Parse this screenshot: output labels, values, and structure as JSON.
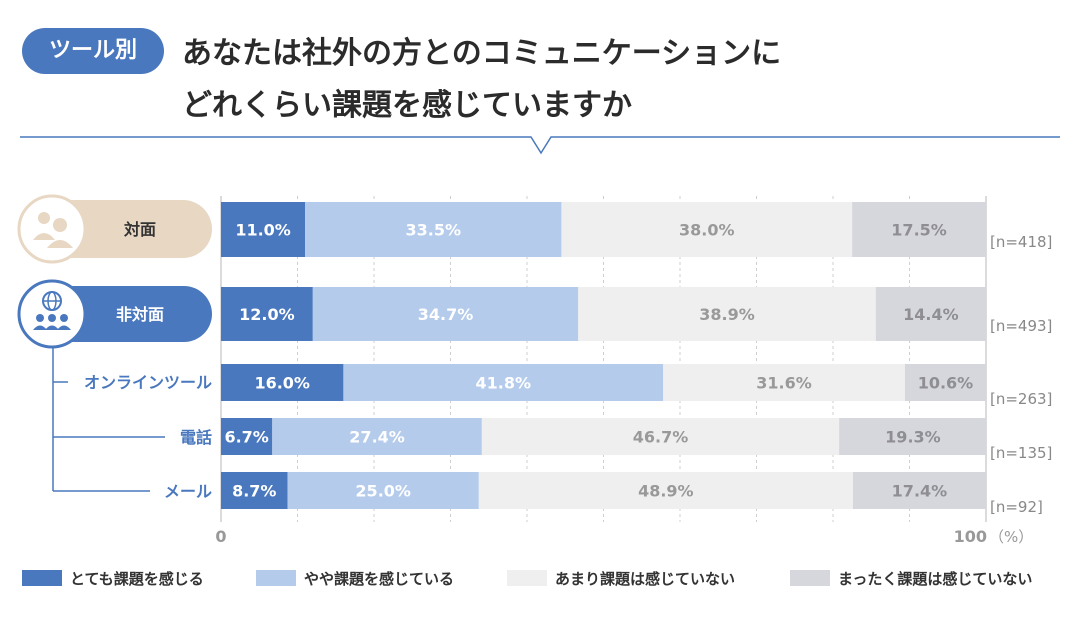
{
  "badge": "ツール別",
  "title_lines": [
    "あなたは社外の方とのコミュニケーションに",
    "どれくらい課題を感じていますか"
  ],
  "colors": {
    "accent": "#4a78be",
    "seg1": "#4a78be",
    "seg2": "#b4cbeb",
    "seg3": "#efefef",
    "seg4": "#d6d7dc",
    "face_pill": "#e7d7c3",
    "grid": "#cfcfcf",
    "nlabel": "#888888"
  },
  "chart_data": {
    "type": "bar",
    "orientation": "horizontal",
    "stacked": true,
    "categories": [
      "対面",
      "非対面",
      "オンラインツール",
      "電話",
      "メール"
    ],
    "sample_sizes": [
      "[n=418]",
      "[n=493]",
      "[n=263]",
      "[n=135]",
      "[n=92]"
    ],
    "series": [
      {
        "name": "とても課題を感じる",
        "values": [
          11.0,
          12.0,
          16.0,
          6.7,
          8.7
        ],
        "labels": [
          "11.0%",
          "12.0%",
          "16.0%",
          "6.7%",
          "8.7%"
        ]
      },
      {
        "name": "やや課題を感じている",
        "values": [
          33.5,
          34.7,
          41.8,
          27.4,
          25.0
        ],
        "labels": [
          "33.5%",
          "34.7%",
          "41.8%",
          "27.4%",
          "25.0%"
        ]
      },
      {
        "name": "あまり課題は感じていない",
        "values": [
          38.0,
          38.9,
          31.6,
          46.7,
          48.9
        ],
        "labels": [
          "38.0%",
          "38.9%",
          "31.6%",
          "46.7%",
          "48.9%"
        ]
      },
      {
        "name": "まったく課題は感じていない",
        "values": [
          17.5,
          14.4,
          10.6,
          19.3,
          17.4
        ],
        "labels": [
          "17.5%",
          "14.4%",
          "10.6%",
          "19.3%",
          "17.4%"
        ]
      }
    ],
    "xlim": [
      0,
      100
    ],
    "x_tick_labels": {
      "min": "0",
      "max": "100",
      "unit": "（%）"
    },
    "grid": true,
    "legend_position": "bottom"
  }
}
